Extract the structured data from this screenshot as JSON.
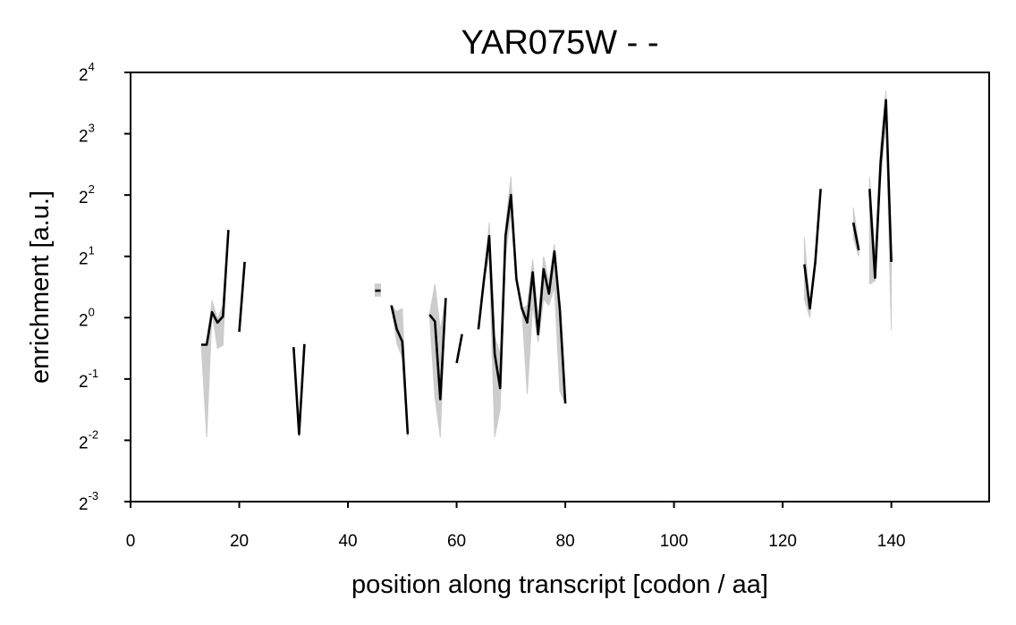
{
  "chart_data": {
    "type": "line",
    "title": "YAR075W - -",
    "xlabel": "position along transcript [codon / aa]",
    "ylabel": "enrichment [a.u.]",
    "xlim": [
      0,
      158
    ],
    "ylim_log2": [
      -3,
      4
    ],
    "y_scale": "log2",
    "x_ticks": [
      "0",
      "20",
      "40",
      "60",
      "80",
      "100",
      "120",
      "140"
    ],
    "y_ticks": [
      {
        "base": "2",
        "exp": "4"
      },
      {
        "base": "2",
        "exp": "3"
      },
      {
        "base": "2",
        "exp": "2"
      },
      {
        "base": "2",
        "exp": "1"
      },
      {
        "base": "2",
        "exp": "0"
      },
      {
        "base": "2",
        "exp": "-1"
      },
      {
        "base": "2",
        "exp": "-2"
      },
      {
        "base": "2",
        "exp": "-3"
      }
    ],
    "grid": false,
    "line_color": "#000000",
    "band_color": "#cccccc",
    "series": [
      {
        "segments": [
          [
            [
              13,
              -0.44
            ],
            [
              14,
              -0.44
            ],
            [
              15,
              0.09
            ],
            [
              16,
              -0.08
            ],
            [
              17,
              0.02
            ],
            [
              18,
              1.43
            ]
          ],
          [
            [
              20,
              -0.23
            ],
            [
              21,
              0.91
            ]
          ],
          [
            [
              30,
              -0.48
            ],
            [
              31,
              -1.9
            ],
            [
              32,
              -0.43
            ]
          ],
          [
            [
              45,
              0.44
            ],
            [
              46,
              0.44
            ]
          ],
          [
            [
              48,
              0.2
            ],
            [
              49,
              -0.19
            ],
            [
              50,
              -0.39
            ],
            [
              51,
              -1.9
            ]
          ],
          [
            [
              55,
              0.05
            ],
            [
              56,
              -0.06
            ],
            [
              57,
              -1.33
            ],
            [
              58,
              0.32
            ]
          ],
          [
            [
              60,
              -0.74
            ],
            [
              61,
              -0.27
            ]
          ],
          [
            [
              64,
              -0.19
            ],
            [
              65,
              0.59
            ],
            [
              66,
              1.33
            ],
            [
              67,
              -0.59
            ],
            [
              68,
              -1.15
            ],
            [
              69,
              1.33
            ],
            [
              70,
              2.0
            ],
            [
              71,
              0.63
            ],
            [
              72,
              0.15
            ],
            [
              73,
              -0.08
            ],
            [
              74,
              0.74
            ],
            [
              75,
              -0.27
            ],
            [
              76,
              0.79
            ],
            [
              77,
              0.39
            ],
            [
              78,
              1.08
            ],
            [
              79,
              0.13
            ],
            [
              80,
              -1.4
            ]
          ],
          [
            [
              124,
              0.87
            ],
            [
              125,
              0.15
            ],
            [
              126,
              0.91
            ],
            [
              127,
              2.1
            ]
          ],
          [
            [
              133,
              1.55
            ],
            [
              134,
              1.1
            ]
          ],
          [
            [
              136,
              2.1
            ],
            [
              137,
              0.65
            ],
            [
              138,
              2.5
            ],
            [
              139,
              3.55
            ],
            [
              140,
              0.91
            ]
          ]
        ],
        "band": [
          [
            [
              13,
              -0.44,
              -0.44
            ],
            [
              14,
              -1.95,
              -0.44
            ],
            [
              15,
              0.09,
              0.28
            ],
            [
              16,
              -0.5,
              -0.02
            ],
            [
              17,
              -0.45,
              0.2
            ],
            [
              18,
              1.43,
              1.43
            ]
          ],
          [
            [
              20,
              -0.23,
              -0.23
            ],
            [
              21,
              0.91,
              0.91
            ]
          ],
          [
            [
              30,
              -0.48,
              -0.48
            ],
            [
              31,
              -1.95,
              -1.85
            ],
            [
              32,
              -0.43,
              -0.43
            ]
          ],
          [
            [
              45,
              0.35,
              0.55
            ],
            [
              46,
              0.35,
              0.55
            ]
          ],
          [
            [
              48,
              0.2,
              0.2
            ],
            [
              49,
              -0.42,
              0.1
            ],
            [
              50,
              -0.65,
              0.15
            ],
            [
              51,
              -1.95,
              -1.85
            ]
          ],
          [
            [
              55,
              0.05,
              0.05
            ],
            [
              56,
              -1.3,
              0.55
            ],
            [
              57,
              -1.95,
              -0.2
            ],
            [
              58,
              0.32,
              0.32
            ]
          ],
          [
            [
              60,
              -0.74,
              -0.74
            ],
            [
              61,
              -0.27,
              -0.27
            ]
          ],
          [
            [
              64,
              -0.19,
              -0.19
            ],
            [
              65,
              0.59,
              0.59
            ],
            [
              66,
              1.0,
              1.55
            ],
            [
              67,
              -1.95,
              -0.3
            ],
            [
              68,
              -1.5,
              -0.6
            ],
            [
              69,
              1.0,
              1.5
            ],
            [
              70,
              1.7,
              2.3
            ],
            [
              71,
              0.63,
              0.63
            ],
            [
              72,
              0.15,
              0.15
            ],
            [
              73,
              -1.25,
              0.2
            ],
            [
              74,
              0.2,
              0.95
            ],
            [
              75,
              -0.4,
              0.0
            ],
            [
              76,
              0.3,
              1.0
            ],
            [
              77,
              0.2,
              0.6
            ],
            [
              78,
              0.5,
              1.2
            ],
            [
              79,
              -1.2,
              0.13
            ],
            [
              80,
              -1.4,
              -1.4
            ]
          ],
          [
            [
              124,
              0.3,
              1.3
            ],
            [
              125,
              0.0,
              0.2
            ],
            [
              126,
              0.91,
              0.91
            ],
            [
              127,
              2.1,
              2.1
            ]
          ],
          [
            [
              133,
              1.3,
              1.8
            ],
            [
              134,
              1.0,
              1.2
            ]
          ],
          [
            [
              136,
              0.55,
              2.3
            ],
            [
              137,
              0.6,
              1.0
            ],
            [
              138,
              2.2,
              2.8
            ],
            [
              139,
              3.2,
              3.7
            ],
            [
              140,
              -0.2,
              1.0
            ]
          ]
        ]
      }
    ]
  }
}
